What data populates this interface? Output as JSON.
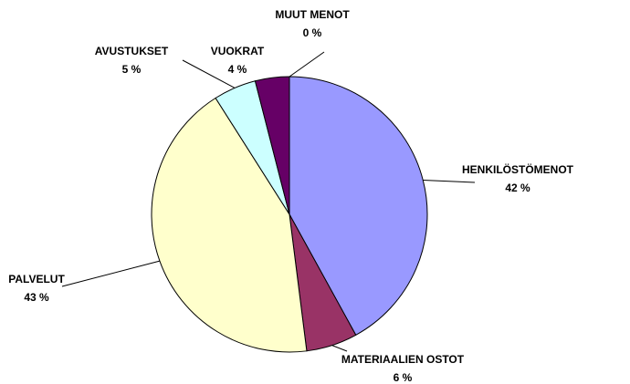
{
  "chart_data": {
    "type": "pie",
    "categories": [
      "HENKILÖSTÖMENOT",
      "MATERIAALIEN OSTOT",
      "PALVELUT",
      "AVUSTUKSET",
      "VUOKRAT",
      "MUUT MENOT"
    ],
    "values": [
      42,
      6,
      43,
      5,
      4,
      0
    ],
    "value_labels": [
      "42 %",
      "6 %",
      "43 %",
      "5 %",
      "4 %",
      "0 %"
    ],
    "colors": [
      "#9999ff",
      "#993366",
      "#ffffcc",
      "#ccffff",
      "#660066",
      "#ff8080"
    ]
  }
}
